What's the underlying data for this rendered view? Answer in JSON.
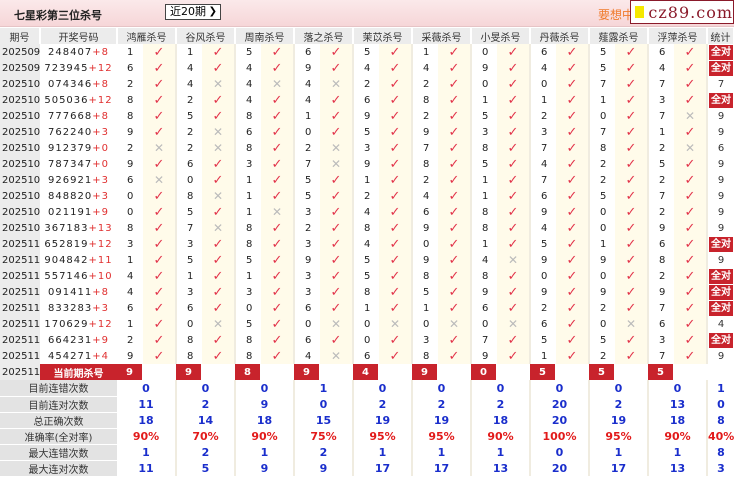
{
  "title": "七星彩第三位杀号",
  "period_select": {
    "value": "近20期"
  },
  "promo": "要想中",
  "logo": "cz89.com",
  "colors": {
    "accent": "#c8232c",
    "check": "#e2334a",
    "stat": "#1a2ecc"
  },
  "headers": {
    "issue": "期号",
    "numbers": "开奖号码",
    "groups": [
      "鸿雁杀号",
      "谷风杀号",
      "周南杀号",
      "落之杀号",
      "茉苡杀号",
      "采薇杀号",
      "小旻杀号",
      "丹薇杀号",
      "薤露杀号",
      "浮萍杀号"
    ],
    "stat": "统计"
  },
  "all_right_label": "全对",
  "rows": [
    {
      "issue": "2025098",
      "nums": "248407",
      "bonus": "+8",
      "picks": [
        [
          1,
          1
        ],
        [
          1,
          1
        ],
        [
          5,
          1
        ],
        [
          6,
          1
        ],
        [
          5,
          1
        ],
        [
          1,
          1
        ],
        [
          0,
          1
        ],
        [
          6,
          1
        ],
        [
          5,
          1
        ],
        [
          6,
          1
        ]
      ],
      "stat": "全对"
    },
    {
      "issue": "2025099",
      "nums": "723945",
      "bonus": "+12",
      "picks": [
        [
          6,
          1
        ],
        [
          4,
          1
        ],
        [
          4,
          1
        ],
        [
          9,
          1
        ],
        [
          4,
          1
        ],
        [
          4,
          1
        ],
        [
          9,
          1
        ],
        [
          4,
          1
        ],
        [
          5,
          1
        ],
        [
          4,
          1
        ]
      ],
      "stat": "全对"
    },
    {
      "issue": "2025100",
      "nums": "074346",
      "bonus": "+8",
      "picks": [
        [
          2,
          1
        ],
        [
          4,
          0
        ],
        [
          4,
          0
        ],
        [
          4,
          0
        ],
        [
          2,
          1
        ],
        [
          2,
          1
        ],
        [
          0,
          1
        ],
        [
          0,
          1
        ],
        [
          7,
          1
        ],
        [
          7,
          1
        ]
      ],
      "stat": "7"
    },
    {
      "issue": "2025101",
      "nums": "505036",
      "bonus": "+12",
      "picks": [
        [
          8,
          1
        ],
        [
          2,
          1
        ],
        [
          4,
          1
        ],
        [
          4,
          1
        ],
        [
          6,
          1
        ],
        [
          8,
          1
        ],
        [
          1,
          1
        ],
        [
          1,
          1
        ],
        [
          1,
          1
        ],
        [
          3,
          1
        ]
      ],
      "stat": "全对"
    },
    {
      "issue": "2025102",
      "nums": "777668",
      "bonus": "+8",
      "picks": [
        [
          8,
          1
        ],
        [
          5,
          1
        ],
        [
          8,
          1
        ],
        [
          1,
          1
        ],
        [
          9,
          1
        ],
        [
          2,
          1
        ],
        [
          5,
          1
        ],
        [
          2,
          1
        ],
        [
          0,
          1
        ],
        [
          7,
          0
        ]
      ],
      "stat": "9"
    },
    {
      "issue": "2025103",
      "nums": "762240",
      "bonus": "+3",
      "picks": [
        [
          9,
          1
        ],
        [
          2,
          0
        ],
        [
          6,
          1
        ],
        [
          0,
          1
        ],
        [
          5,
          1
        ],
        [
          9,
          1
        ],
        [
          3,
          1
        ],
        [
          3,
          1
        ],
        [
          7,
          1
        ],
        [
          1,
          1
        ]
      ],
      "stat": "9"
    },
    {
      "issue": "2025104",
      "nums": "912379",
      "bonus": "+0",
      "picks": [
        [
          2,
          0
        ],
        [
          2,
          0
        ],
        [
          8,
          1
        ],
        [
          2,
          0
        ],
        [
          3,
          1
        ],
        [
          7,
          1
        ],
        [
          8,
          1
        ],
        [
          7,
          1
        ],
        [
          8,
          1
        ],
        [
          2,
          0
        ]
      ],
      "stat": "6"
    },
    {
      "issue": "2025105",
      "nums": "787347",
      "bonus": "+0",
      "picks": [
        [
          9,
          1
        ],
        [
          6,
          1
        ],
        [
          3,
          1
        ],
        [
          7,
          0
        ],
        [
          9,
          1
        ],
        [
          8,
          1
        ],
        [
          5,
          1
        ],
        [
          4,
          1
        ],
        [
          2,
          1
        ],
        [
          5,
          1
        ]
      ],
      "stat": "9"
    },
    {
      "issue": "2025106",
      "nums": "926921",
      "bonus": "+3",
      "picks": [
        [
          6,
          0
        ],
        [
          0,
          1
        ],
        [
          1,
          1
        ],
        [
          5,
          1
        ],
        [
          1,
          1
        ],
        [
          2,
          1
        ],
        [
          1,
          1
        ],
        [
          7,
          1
        ],
        [
          2,
          1
        ],
        [
          2,
          1
        ]
      ],
      "stat": "9"
    },
    {
      "issue": "2025107",
      "nums": "848820",
      "bonus": "+3",
      "picks": [
        [
          0,
          1
        ],
        [
          8,
          0
        ],
        [
          1,
          1
        ],
        [
          5,
          1
        ],
        [
          2,
          1
        ],
        [
          4,
          1
        ],
        [
          1,
          1
        ],
        [
          6,
          1
        ],
        [
          5,
          1
        ],
        [
          7,
          1
        ]
      ],
      "stat": "9"
    },
    {
      "issue": "2025108",
      "nums": "021191",
      "bonus": "+9",
      "picks": [
        [
          0,
          1
        ],
        [
          5,
          1
        ],
        [
          1,
          0
        ],
        [
          3,
          1
        ],
        [
          4,
          1
        ],
        [
          6,
          1
        ],
        [
          8,
          1
        ],
        [
          9,
          1
        ],
        [
          0,
          1
        ],
        [
          2,
          1
        ]
      ],
      "stat": "9"
    },
    {
      "issue": "2025109",
      "nums": "367183",
      "bonus": "+13",
      "picks": [
        [
          8,
          1
        ],
        [
          7,
          0
        ],
        [
          8,
          1
        ],
        [
          2,
          1
        ],
        [
          8,
          1
        ],
        [
          9,
          1
        ],
        [
          8,
          1
        ],
        [
          4,
          1
        ],
        [
          0,
          1
        ],
        [
          9,
          1
        ]
      ],
      "stat": "9"
    },
    {
      "issue": "2025110",
      "nums": "652819",
      "bonus": "+12",
      "picks": [
        [
          3,
          1
        ],
        [
          3,
          1
        ],
        [
          8,
          1
        ],
        [
          3,
          1
        ],
        [
          4,
          1
        ],
        [
          0,
          1
        ],
        [
          1,
          1
        ],
        [
          5,
          1
        ],
        [
          1,
          1
        ],
        [
          6,
          1
        ]
      ],
      "stat": "全对"
    },
    {
      "issue": "2025111",
      "nums": "904842",
      "bonus": "+11",
      "picks": [
        [
          1,
          1
        ],
        [
          5,
          1
        ],
        [
          5,
          1
        ],
        [
          9,
          1
        ],
        [
          5,
          1
        ],
        [
          9,
          1
        ],
        [
          4,
          0
        ],
        [
          9,
          1
        ],
        [
          9,
          1
        ],
        [
          8,
          1
        ]
      ],
      "stat": "9"
    },
    {
      "issue": "2025112",
      "nums": "557146",
      "bonus": "+10",
      "picks": [
        [
          4,
          1
        ],
        [
          1,
          1
        ],
        [
          1,
          1
        ],
        [
          3,
          1
        ],
        [
          5,
          1
        ],
        [
          8,
          1
        ],
        [
          8,
          1
        ],
        [
          0,
          1
        ],
        [
          0,
          1
        ],
        [
          2,
          1
        ]
      ],
      "stat": "全对"
    },
    {
      "issue": "2025113",
      "nums": "091411",
      "bonus": "+8",
      "picks": [
        [
          4,
          1
        ],
        [
          3,
          1
        ],
        [
          3,
          1
        ],
        [
          3,
          1
        ],
        [
          8,
          1
        ],
        [
          5,
          1
        ],
        [
          9,
          1
        ],
        [
          9,
          1
        ],
        [
          9,
          1
        ],
        [
          9,
          1
        ]
      ],
      "stat": "全对"
    },
    {
      "issue": "2025114",
      "nums": "833283",
      "bonus": "+3",
      "picks": [
        [
          6,
          1
        ],
        [
          6,
          1
        ],
        [
          0,
          1
        ],
        [
          6,
          1
        ],
        [
          1,
          1
        ],
        [
          1,
          1
        ],
        [
          6,
          1
        ],
        [
          2,
          1
        ],
        [
          2,
          1
        ],
        [
          7,
          1
        ]
      ],
      "stat": "全对"
    },
    {
      "issue": "2025115",
      "nums": "170629",
      "bonus": "+12",
      "picks": [
        [
          1,
          1
        ],
        [
          0,
          0
        ],
        [
          5,
          1
        ],
        [
          0,
          0
        ],
        [
          0,
          0
        ],
        [
          0,
          0
        ],
        [
          0,
          0
        ],
        [
          6,
          1
        ],
        [
          0,
          0
        ],
        [
          6,
          1
        ]
      ],
      "stat": "4"
    },
    {
      "issue": "2025116",
      "nums": "664231",
      "bonus": "+9",
      "picks": [
        [
          2,
          1
        ],
        [
          8,
          1
        ],
        [
          8,
          1
        ],
        [
          6,
          1
        ],
        [
          0,
          1
        ],
        [
          3,
          1
        ],
        [
          7,
          1
        ],
        [
          5,
          1
        ],
        [
          5,
          1
        ],
        [
          3,
          1
        ]
      ],
      "stat": "全对"
    },
    {
      "issue": "2025117",
      "nums": "454271",
      "bonus": "+4",
      "picks": [
        [
          9,
          1
        ],
        [
          8,
          1
        ],
        [
          8,
          1
        ],
        [
          4,
          0
        ],
        [
          6,
          1
        ],
        [
          8,
          1
        ],
        [
          9,
          1
        ],
        [
          1,
          1
        ],
        [
          2,
          1
        ],
        [
          7,
          1
        ]
      ],
      "stat": "9"
    }
  ],
  "current": {
    "issue": "2025118",
    "label": "当前期杀号",
    "picks": [
      "9",
      "9",
      "8",
      "9",
      "4",
      "9",
      "0",
      "5",
      "5",
      "5"
    ]
  },
  "stats": [
    {
      "label": "目前连错次数",
      "values": [
        "0",
        "0",
        "0",
        "1",
        "0",
        "0",
        "0",
        "0",
        "0",
        "0",
        "1"
      ]
    },
    {
      "label": "目前连对次数",
      "values": [
        "11",
        "2",
        "9",
        "0",
        "2",
        "2",
        "2",
        "20",
        "2",
        "13",
        "0"
      ]
    },
    {
      "label": "总正确次数",
      "values": [
        "18",
        "14",
        "18",
        "15",
        "19",
        "19",
        "18",
        "20",
        "19",
        "18",
        "8"
      ]
    },
    {
      "label": "准确率(全对率)",
      "values": [
        "90%",
        "70%",
        "90%",
        "75%",
        "95%",
        "95%",
        "90%",
        "100%",
        "95%",
        "90%",
        "40%"
      ],
      "red": true
    },
    {
      "label": "最大连错次数",
      "values": [
        "1",
        "2",
        "1",
        "2",
        "1",
        "1",
        "1",
        "0",
        "1",
        "1",
        "8"
      ]
    },
    {
      "label": "最大连对次数",
      "values": [
        "11",
        "5",
        "9",
        "9",
        "17",
        "17",
        "13",
        "20",
        "17",
        "13",
        "3"
      ]
    }
  ]
}
